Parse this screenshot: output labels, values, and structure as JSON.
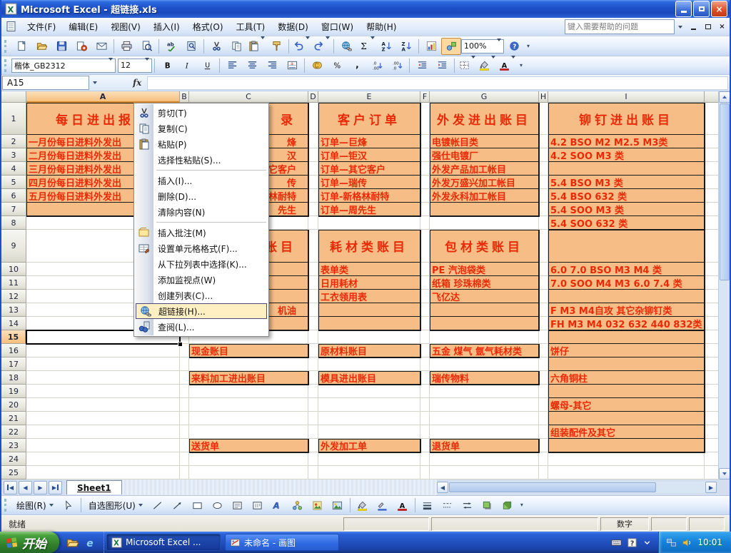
{
  "window": {
    "title": "Microsoft Excel - 超链接.xls"
  },
  "menu_bar": {
    "items": [
      "文件(F)",
      "编辑(E)",
      "视图(V)",
      "插入(I)",
      "格式(O)",
      "工具(T)",
      "数据(D)",
      "窗口(W)",
      "帮助(H)"
    ],
    "help_placeholder": "键入需要帮助的问题"
  },
  "standard_toolbar": {
    "buttons": [
      "new",
      "open",
      "save",
      "permission",
      "email",
      "print",
      "print-preview",
      "spelling",
      "research",
      "cut",
      "copy",
      "paste",
      "format-painter",
      "undo",
      "redo",
      "insert-hyperlink",
      "autosum",
      "sort-ascending",
      "sort-descending",
      "chart-wizard",
      "drawing",
      "zoom",
      "help"
    ],
    "zoom_value": "100%"
  },
  "formatting_toolbar": {
    "font_name": "楷体_GB2312",
    "font_size": "12",
    "buttons": [
      "bold",
      "italic",
      "underline",
      "align-left",
      "align-center",
      "align-right",
      "merge-center",
      "currency",
      "percent",
      "comma",
      "increase-decimal",
      "decrease-decimal",
      "decrease-indent",
      "increase-indent",
      "borders",
      "fill-color",
      "font-color"
    ]
  },
  "formula_bar": {
    "name_box": "A15",
    "fx_label": "fx",
    "formula": ""
  },
  "context_menu": {
    "items": [
      {
        "name": "cut",
        "icon": "cut",
        "label": "剪切(T)"
      },
      {
        "name": "copy",
        "icon": "copy",
        "label": "复制(C)"
      },
      {
        "name": "paste",
        "icon": "paste",
        "label": "粘贴(P)"
      },
      {
        "name": "paste-special",
        "icon": "",
        "label": "选择性粘贴(S)..."
      },
      {
        "separator": true
      },
      {
        "name": "insert",
        "icon": "",
        "label": "插入(I)..."
      },
      {
        "name": "delete",
        "icon": "",
        "label": "删除(D)..."
      },
      {
        "name": "clear-contents",
        "icon": "",
        "label": "清除内容(N)"
      },
      {
        "separator": true
      },
      {
        "name": "insert-comment",
        "icon": "comment",
        "label": "插入批注(M)"
      },
      {
        "name": "format-cells",
        "icon": "format-cells",
        "label": "设置单元格格式(F)..."
      },
      {
        "name": "pick-from-list",
        "icon": "",
        "label": "从下拉列表中选择(K)..."
      },
      {
        "name": "add-watch",
        "icon": "",
        "label": "添加监视点(W)"
      },
      {
        "name": "create-list",
        "icon": "",
        "label": "创建列表(C)..."
      },
      {
        "name": "hyperlink",
        "icon": "hyperlink",
        "label": "超链接(H)...",
        "highlighted": true
      },
      {
        "name": "lookup",
        "icon": "lookup",
        "label": "查阅(L)..."
      }
    ]
  },
  "grid": {
    "column_letters": [
      "A",
      "B",
      "C",
      "D",
      "E",
      "F",
      "G",
      "H",
      "I"
    ],
    "row_numbers": [
      "1",
      "2",
      "3",
      "4",
      "5",
      "6",
      "7",
      "8",
      "9",
      "10",
      "11",
      "12",
      "13",
      "14",
      "15",
      "16",
      "17",
      "18",
      "19",
      "20",
      "21",
      "22",
      "23",
      "24",
      "25"
    ],
    "selected_cell": "A15",
    "cells": [
      {
        "ref": "A1",
        "text": "每日进出报表",
        "title": true
      },
      {
        "ref": "A2",
        "text": "一月份每日进料外发出"
      },
      {
        "ref": "A3",
        "text": "二月份每日进料外发出"
      },
      {
        "ref": "A4",
        "text": "三月份每日进料外发出"
      },
      {
        "ref": "A5",
        "text": "四月份每日进料外发出"
      },
      {
        "ref": "A6",
        "text": "五月份每日进料外发出"
      },
      {
        "ref": "C1",
        "text": "录",
        "title": true,
        "frag": true
      },
      {
        "ref": "C2",
        "text": "烽",
        "frag": true
      },
      {
        "ref": "C3",
        "text": "汉",
        "frag": true
      },
      {
        "ref": "C4",
        "text": "它客户",
        "frag": true
      },
      {
        "ref": "C5",
        "text": "传",
        "frag": true
      },
      {
        "ref": "C6",
        "text": "林耐特",
        "frag": true
      },
      {
        "ref": "C7",
        "text": "先生",
        "frag": true
      },
      {
        "ref": "C9",
        "text": "账目",
        "title": true,
        "frag": true
      },
      {
        "ref": "C13",
        "text": "机油",
        "frag": true
      },
      {
        "ref": "C16",
        "text": "现金账目"
      },
      {
        "ref": "C18",
        "text": "来料加工进出账目"
      },
      {
        "ref": "C23",
        "text": "送货单"
      },
      {
        "ref": "E1",
        "text": "客户订单",
        "title": true
      },
      {
        "ref": "E2",
        "text": "订单—巨烽"
      },
      {
        "ref": "E3",
        "text": "订单—钜汉"
      },
      {
        "ref": "E4",
        "text": "订单—其它客户"
      },
      {
        "ref": "E5",
        "text": "订单—瑞传"
      },
      {
        "ref": "E6",
        "text": "订单-新格林耐特"
      },
      {
        "ref": "E7",
        "text": "订单—周先生"
      },
      {
        "ref": "E9",
        "text": "耗材类账目",
        "title": true
      },
      {
        "ref": "E10",
        "text": "表单类"
      },
      {
        "ref": "E11",
        "text": "日用耗材"
      },
      {
        "ref": "E12",
        "text": "工衣领用表"
      },
      {
        "ref": "E16",
        "text": "原材料账目"
      },
      {
        "ref": "E18",
        "text": "模具进出账目"
      },
      {
        "ref": "E23",
        "text": "外发加工单"
      },
      {
        "ref": "G1",
        "text": "外发进出账目",
        "title": true
      },
      {
        "ref": "G2",
        "text": "电镀帐目类"
      },
      {
        "ref": "G3",
        "text": "强仕电镀厂"
      },
      {
        "ref": "G4",
        "text": "外发产品加工帐目"
      },
      {
        "ref": "G5",
        "text": "外发万盛兴加工帐目"
      },
      {
        "ref": "G6",
        "text": "外发永科加工帐目"
      },
      {
        "ref": "G9",
        "text": "包材类账目",
        "title": true
      },
      {
        "ref": "G10",
        "text": "PE 汽泡袋类"
      },
      {
        "ref": "G11",
        "text": "纸箱 珍珠棉类"
      },
      {
        "ref": "G12",
        "text": "飞亿达"
      },
      {
        "ref": "G16",
        "text": "五金 煤气 氩气耗材类"
      },
      {
        "ref": "G18",
        "text": "瑞传物料"
      },
      {
        "ref": "G23",
        "text": "退货单"
      },
      {
        "ref": "I1",
        "text": "铆钉进出账目",
        "title": true
      },
      {
        "ref": "I2",
        "text": "4.2 BSO M2 M2.5 M3类"
      },
      {
        "ref": "I3",
        "text": "4.2 SOO M3 类"
      },
      {
        "ref": "I5",
        "text": "5.4 BSO M3 类"
      },
      {
        "ref": "I6",
        "text": "5.4 BSO 632 类"
      },
      {
        "ref": "I7",
        "text": "5.4 SOO M3 类"
      },
      {
        "ref": "I8",
        "text": "5.4 SOO 632 类"
      },
      {
        "ref": "I10",
        "text": "6.0 7.0 BSO M3 M4 类"
      },
      {
        "ref": "I11",
        "text": "7.0 SOO M4 M3 6.0 7.4 类"
      },
      {
        "ref": "I13",
        "text": "F M3 M4自攻 其它杂铆钉类"
      },
      {
        "ref": "I14",
        "text": "FH M3 M4 032 632 440 832类"
      },
      {
        "ref": "I16",
        "text": "饼仔"
      },
      {
        "ref": "I18",
        "text": "六角铜柱"
      },
      {
        "ref": "I20",
        "text": "螺母-其它"
      },
      {
        "ref": "I22",
        "text": "组装配件及其它"
      }
    ]
  },
  "sheet_tabs": {
    "tabs": [
      "Sheet1"
    ],
    "active": "Sheet1"
  },
  "drawing_toolbar": {
    "draw_label": "绘图(R)",
    "autoshapes_label": "自选图形(U)",
    "buttons": [
      "select-object",
      "line",
      "arrow",
      "rectangle",
      "oval",
      "text-box",
      "vertical-text-box",
      "wordart",
      "diagram",
      "clip-art",
      "picture",
      "fill-color",
      "line-color",
      "font-color",
      "line-style",
      "dash-style",
      "arrow-style",
      "shadow-style",
      "3d-style"
    ]
  },
  "status_bar": {
    "mode": "就绪",
    "num_indicator": "数字"
  },
  "taskbar": {
    "start_label": "开始",
    "tasks": [
      {
        "icon": "excel",
        "label": "Microsoft Excel ..."
      },
      {
        "icon": "paint",
        "label": "未命名 - 画图"
      }
    ],
    "tray_time": "10:01"
  },
  "colors": {
    "cell_fill": "#F6BE86",
    "cell_text": "#E82A08",
    "menu_highlight": "#FFEFC2",
    "titlebar_blue": "#1C50C8"
  }
}
